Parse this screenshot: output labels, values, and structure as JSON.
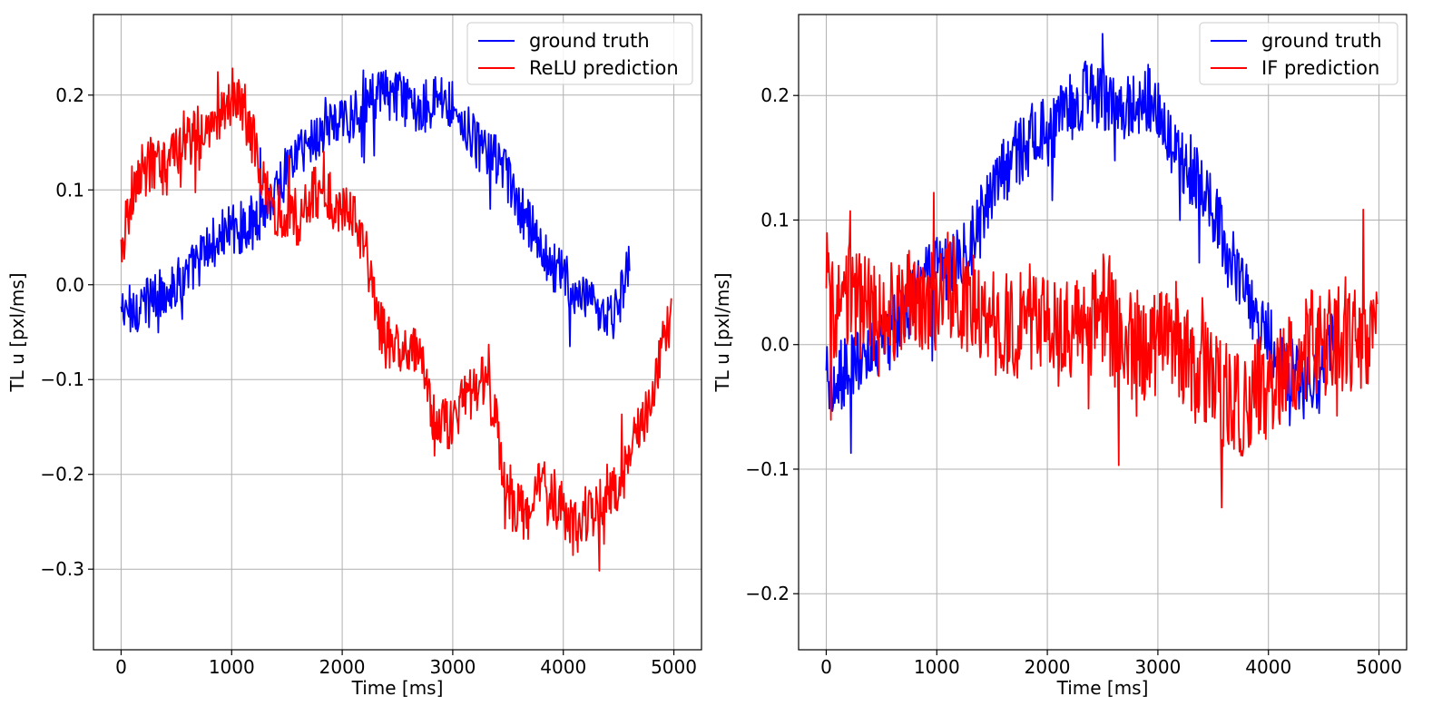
{
  "colors": {
    "ground_truth": "#0000ff",
    "prediction": "#ff0000",
    "grid": "#b0b0b0",
    "axes": "#000000"
  },
  "chart_data": [
    {
      "type": "line",
      "xlabel": "Time [ms]",
      "ylabel": "TL u [pxl/ms]",
      "xlim": [
        -250,
        5250
      ],
      "ylim": [
        -0.385,
        0.285
      ],
      "xticks": [
        0,
        1000,
        2000,
        3000,
        4000,
        5000
      ],
      "xtick_labels": [
        "0",
        "1000",
        "2000",
        "3000",
        "4000",
        "5000"
      ],
      "yticks": [
        -0.3,
        -0.2,
        -0.1,
        0.0,
        0.1,
        0.2
      ],
      "ytick_labels": [
        "−0.3",
        "−0.2",
        "−0.1",
        "0.0",
        "0.1",
        "0.2"
      ],
      "grid": true,
      "legend": "top-right",
      "series": [
        {
          "name": "ground truth",
          "color": "#0000ff",
          "x": [
            0,
            100,
            200,
            300,
            400,
            500,
            600,
            700,
            800,
            900,
            1000,
            1100,
            1200,
            1300,
            1400,
            1500,
            1600,
            1700,
            1800,
            1900,
            2000,
            2100,
            2200,
            2300,
            2400,
            2500,
            2600,
            2700,
            2800,
            2900,
            3000,
            3100,
            3200,
            3300,
            3400,
            3500,
            3600,
            3700,
            3800,
            3900,
            4000,
            4100,
            4200,
            4300,
            4400,
            4500,
            4600
          ],
          "y": [
            -0.03,
            -0.025,
            -0.02,
            -0.015,
            -0.005,
            0.0,
            0.01,
            0.025,
            0.04,
            0.05,
            0.06,
            0.06,
            0.07,
            0.08,
            0.1,
            0.12,
            0.14,
            0.15,
            0.16,
            0.17,
            0.17,
            0.18,
            0.19,
            0.2,
            0.2,
            0.2,
            0.19,
            0.19,
            0.19,
            0.2,
            0.19,
            0.17,
            0.15,
            0.14,
            0.13,
            0.11,
            0.08,
            0.06,
            0.04,
            0.02,
            0.01,
            -0.01,
            -0.02,
            -0.03,
            -0.04,
            -0.02,
            0.02
          ]
        },
        {
          "name": "ReLU prediction",
          "color": "#ff0000",
          "x": [
            0,
            100,
            200,
            300,
            400,
            500,
            600,
            700,
            800,
            900,
            1000,
            1100,
            1200,
            1300,
            1400,
            1500,
            1600,
            1700,
            1800,
            1900,
            2000,
            2100,
            2200,
            2300,
            2400,
            2500,
            2600,
            2700,
            2800,
            2900,
            3000,
            3100,
            3200,
            3300,
            3400,
            3500,
            3600,
            3700,
            3800,
            3900,
            4000,
            4100,
            4200,
            4300,
            4400,
            4500,
            4600,
            4700,
            4800,
            4900,
            4980
          ],
          "y": [
            0.04,
            0.1,
            0.12,
            0.13,
            0.12,
            0.14,
            0.16,
            0.15,
            0.16,
            0.18,
            0.2,
            0.19,
            0.15,
            0.11,
            0.08,
            0.08,
            0.07,
            0.09,
            0.1,
            0.09,
            0.08,
            0.07,
            0.04,
            -0.03,
            -0.06,
            -0.07,
            -0.08,
            -0.06,
            -0.14,
            -0.15,
            -0.14,
            -0.12,
            -0.11,
            -0.1,
            -0.15,
            -0.23,
            -0.24,
            -0.24,
            -0.21,
            -0.22,
            -0.24,
            -0.26,
            -0.24,
            -0.24,
            -0.22,
            -0.21,
            -0.18,
            -0.15,
            -0.11,
            -0.06,
            -0.03
          ]
        }
      ]
    },
    {
      "type": "line",
      "xlabel": "Time [ms]",
      "ylabel": "TL u [pxl/ms]",
      "xlim": [
        -250,
        5250
      ],
      "ylim": [
        -0.245,
        0.265
      ],
      "xticks": [
        0,
        1000,
        2000,
        3000,
        4000,
        5000
      ],
      "xtick_labels": [
        "0",
        "1000",
        "2000",
        "3000",
        "4000",
        "5000"
      ],
      "yticks": [
        -0.2,
        -0.1,
        0.0,
        0.1,
        0.2
      ],
      "ytick_labels": [
        "−0.2",
        "−0.1",
        "0.0",
        "0.1",
        "0.2"
      ],
      "grid": true,
      "legend": "top-right",
      "series": [
        {
          "name": "ground truth",
          "color": "#0000ff",
          "x": [
            0,
            100,
            200,
            300,
            400,
            500,
            600,
            700,
            800,
            900,
            1000,
            1100,
            1200,
            1300,
            1400,
            1500,
            1600,
            1700,
            1800,
            1900,
            2000,
            2100,
            2200,
            2300,
            2400,
            2500,
            2600,
            2700,
            2800,
            2900,
            3000,
            3100,
            3200,
            3300,
            3400,
            3500,
            3600,
            3700,
            3800,
            3900,
            4000,
            4100,
            4200,
            4300,
            4400,
            4500,
            4600
          ],
          "y": [
            -0.03,
            -0.025,
            -0.02,
            -0.015,
            -0.005,
            0.0,
            0.01,
            0.025,
            0.04,
            0.05,
            0.06,
            0.06,
            0.07,
            0.08,
            0.1,
            0.12,
            0.14,
            0.15,
            0.16,
            0.17,
            0.17,
            0.18,
            0.19,
            0.2,
            0.2,
            0.2,
            0.19,
            0.19,
            0.19,
            0.2,
            0.19,
            0.17,
            0.15,
            0.14,
            0.13,
            0.11,
            0.08,
            0.06,
            0.04,
            0.02,
            0.01,
            -0.01,
            -0.02,
            -0.03,
            -0.04,
            -0.02,
            0.02
          ]
        },
        {
          "name": "IF prediction",
          "color": "#ff0000",
          "x": [
            0,
            100,
            200,
            300,
            400,
            500,
            600,
            700,
            800,
            900,
            1000,
            1100,
            1200,
            1300,
            1400,
            1500,
            1600,
            1700,
            1800,
            1900,
            2000,
            2100,
            2200,
            2300,
            2400,
            2500,
            2600,
            2700,
            2800,
            2900,
            3000,
            3100,
            3200,
            3300,
            3400,
            3500,
            3600,
            3700,
            3800,
            3900,
            4000,
            4100,
            4200,
            4300,
            4400,
            4500,
            4600,
            4700,
            4800,
            4900,
            4990
          ],
          "y": [
            0.03,
            0.03,
            0.04,
            0.03,
            0.03,
            0.02,
            0.03,
            0.04,
            0.03,
            0.04,
            0.04,
            0.05,
            0.04,
            0.03,
            0.03,
            0.02,
            0.02,
            0.01,
            0.02,
            0.02,
            0.01,
            0.02,
            0.01,
            0.01,
            0.02,
            0.03,
            0.01,
            0.0,
            0.0,
            0.0,
            0.0,
            0.0,
            -0.01,
            -0.02,
            -0.02,
            -0.03,
            -0.04,
            -0.05,
            -0.05,
            -0.04,
            -0.03,
            -0.03,
            -0.02,
            -0.01,
            0.0,
            0.0,
            0.0,
            0.01,
            0.0,
            0.01,
            0.02
          ]
        }
      ]
    }
  ]
}
